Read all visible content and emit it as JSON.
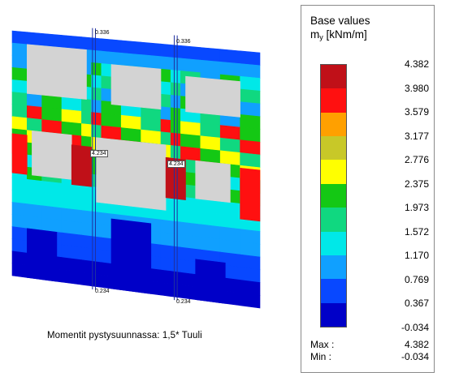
{
  "caption": "Momentit pystysuunnassa: 1,5* Tuuli",
  "plot": {
    "top_labels": [
      "0.336",
      "0.336"
    ],
    "bottom_labels": [
      "0.234",
      "0.234"
    ],
    "peak_labels": [
      "4.234",
      "4.234"
    ]
  },
  "legend": {
    "title": "Base values",
    "quantity": "m",
    "quantity_sub": "y",
    "unit": "[kNm/m]",
    "levels": [
      "4.382",
      "3.980",
      "3.579",
      "3.177",
      "2.776",
      "2.375",
      "1.973",
      "1.572",
      "1.170",
      "0.769",
      "0.367",
      "-0.034"
    ],
    "colors": [
      "#c01018",
      "#ff1010",
      "#ffa000",
      "#c8c828",
      "#ffff00",
      "#14c814",
      "#10d880",
      "#00e8e8",
      "#10a0ff",
      "#0848ff",
      "#0000c8"
    ],
    "max_label": "Max :",
    "max_value": "4.382",
    "min_label": "Min :",
    "min_value": "-0.034"
  }
}
